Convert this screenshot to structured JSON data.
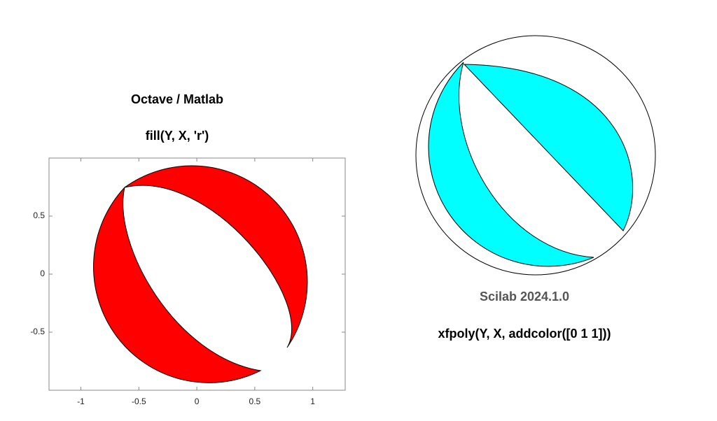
{
  "left": {
    "title": "Octave / Matlab",
    "subtitle": "fill(Y, X, 'r')",
    "xlim": [
      -1.275,
      1.28
    ],
    "ylim": [
      -1,
      1
    ],
    "xticks": [
      -1,
      -0.5,
      0,
      0.5,
      1
    ],
    "yticks": [
      -0.5,
      0,
      0.5
    ]
  },
  "right": {
    "title": "Scilab 2024.1.0",
    "subtitle": "xfpoly(Y, X, addcolor([0 1 1]))"
  }
}
